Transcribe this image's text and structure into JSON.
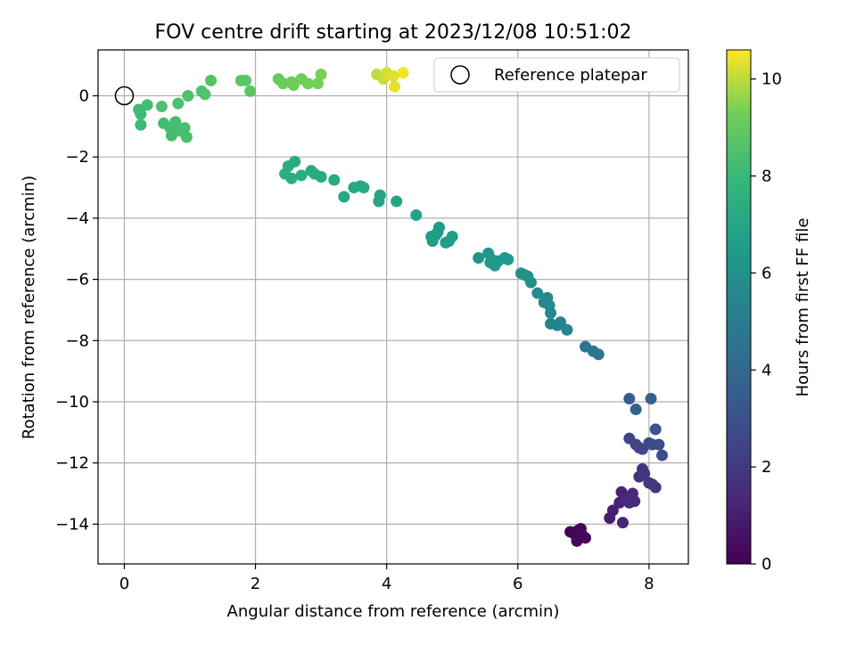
{
  "chart_data": {
    "type": "scatter",
    "title": "FOV centre drift starting at 2023/12/08 10:51:02",
    "xlabel": "Angular distance from reference (arcmin)",
    "ylabel": "Rotation from reference (arcmin)",
    "xlim": [
      -0.4,
      8.6
    ],
    "ylim": [
      -15.3,
      1.5
    ],
    "xticks": [
      0,
      2,
      4,
      6,
      8
    ],
    "yticks": [
      0,
      -2,
      -4,
      -6,
      -8,
      -10,
      -12,
      -14
    ],
    "xtick_labels": [
      "0",
      "2",
      "4",
      "6",
      "8"
    ],
    "ytick_labels": [
      "0",
      "−2",
      "−4",
      "−6",
      "−8",
      "−10",
      "−12",
      "−14"
    ],
    "grid": true,
    "legend": {
      "position": "top-right",
      "entries": [
        "Reference platepar"
      ]
    },
    "colorbar": {
      "label": "Hours from first FF file",
      "colormap": "viridis",
      "range": [
        0,
        10.6
      ],
      "ticks": [
        0,
        2,
        4,
        6,
        8,
        10
      ],
      "tick_labels": [
        "0",
        "2",
        "4",
        "6",
        "8",
        "10"
      ]
    },
    "reference_point": {
      "x": 0,
      "y": 0,
      "label": "Reference platepar"
    },
    "series": [
      {
        "columns": [
          "x",
          "y",
          "hours"
        ],
        "points": [
          [
            6.8,
            -14.25,
            0.05
          ],
          [
            6.85,
            -14.3,
            0.1
          ],
          [
            6.92,
            -14.2,
            0.12
          ],
          [
            6.96,
            -14.15,
            0.15
          ],
          [
            6.9,
            -14.55,
            0.2
          ],
          [
            7.03,
            -14.45,
            0.25
          ],
          [
            6.98,
            -14.35,
            0.3
          ],
          [
            7.4,
            -13.8,
            0.9
          ],
          [
            7.45,
            -13.55,
            1.0
          ],
          [
            7.55,
            -13.3,
            1.1
          ],
          [
            7.58,
            -12.95,
            1.2
          ],
          [
            7.6,
            -13.95,
            1.25
          ],
          [
            7.7,
            -13.3,
            1.3
          ],
          [
            7.75,
            -13.0,
            1.35
          ],
          [
            7.78,
            -13.25,
            1.4
          ],
          [
            7.65,
            -13.2,
            1.45
          ],
          [
            7.85,
            -12.45,
            1.7
          ],
          [
            7.9,
            -12.2,
            1.8
          ],
          [
            7.93,
            -12.35,
            1.85
          ],
          [
            8.0,
            -12.65,
            1.9
          ],
          [
            8.05,
            -12.7,
            1.95
          ],
          [
            8.1,
            -12.8,
            2.0
          ],
          [
            7.7,
            -11.2,
            2.4
          ],
          [
            7.8,
            -11.4,
            2.5
          ],
          [
            7.85,
            -11.5,
            2.55
          ],
          [
            7.9,
            -11.55,
            2.6
          ],
          [
            8.0,
            -11.35,
            2.7
          ],
          [
            8.05,
            -11.4,
            2.75
          ],
          [
            8.15,
            -11.4,
            2.8
          ],
          [
            8.2,
            -11.75,
            2.85
          ],
          [
            8.1,
            -10.9,
            3.1
          ],
          [
            7.7,
            -9.9,
            3.6
          ],
          [
            7.8,
            -10.25,
            3.65
          ],
          [
            8.03,
            -9.9,
            3.7
          ],
          [
            7.03,
            -8.2,
            4.6
          ],
          [
            7.15,
            -8.35,
            4.7
          ],
          [
            7.23,
            -8.45,
            4.8
          ],
          [
            6.5,
            -7.45,
            5.3
          ],
          [
            6.6,
            -7.5,
            5.35
          ],
          [
            6.65,
            -7.4,
            5.4
          ],
          [
            6.75,
            -7.65,
            5.45
          ],
          [
            6.45,
            -6.6,
            5.55
          ],
          [
            6.4,
            -6.75,
            5.6
          ],
          [
            6.48,
            -6.85,
            5.62
          ],
          [
            6.5,
            -7.1,
            5.65
          ],
          [
            6.3,
            -6.45,
            5.75
          ],
          [
            6.1,
            -5.85,
            5.85
          ],
          [
            6.15,
            -5.9,
            5.9
          ],
          [
            6.2,
            -6.1,
            5.95
          ],
          [
            6.05,
            -5.8,
            6.0
          ],
          [
            5.4,
            -5.3,
            6.15
          ],
          [
            5.55,
            -5.15,
            6.2
          ],
          [
            5.6,
            -5.35,
            6.25
          ],
          [
            5.65,
            -5.55,
            6.3
          ],
          [
            5.58,
            -5.45,
            6.32
          ],
          [
            5.7,
            -5.4,
            6.35
          ],
          [
            5.8,
            -5.3,
            6.4
          ],
          [
            5.85,
            -5.35,
            6.45
          ],
          [
            4.8,
            -4.3,
            6.55
          ],
          [
            4.78,
            -4.45,
            6.58
          ],
          [
            4.75,
            -4.55,
            6.6
          ],
          [
            4.68,
            -4.6,
            6.62
          ],
          [
            4.7,
            -4.75,
            6.65
          ],
          [
            4.9,
            -4.8,
            6.7
          ],
          [
            5.0,
            -4.6,
            6.72
          ],
          [
            4.95,
            -4.75,
            6.75
          ],
          [
            4.45,
            -3.9,
            6.85
          ],
          [
            4.15,
            -3.45,
            6.95
          ],
          [
            3.9,
            -3.25,
            7.0
          ],
          [
            3.88,
            -3.45,
            7.02
          ],
          [
            3.35,
            -3.3,
            7.1
          ],
          [
            3.5,
            -3.0,
            7.15
          ],
          [
            3.6,
            -2.95,
            7.17
          ],
          [
            3.65,
            -3.0,
            7.2
          ],
          [
            3.2,
            -2.75,
            7.25
          ],
          [
            3.0,
            -2.65,
            7.28
          ],
          [
            2.9,
            -2.55,
            7.3
          ],
          [
            2.85,
            -2.45,
            7.32
          ],
          [
            2.6,
            -2.15,
            7.35
          ],
          [
            2.5,
            -2.3,
            7.37
          ],
          [
            2.45,
            -2.55,
            7.4
          ],
          [
            2.55,
            -2.7,
            7.42
          ],
          [
            2.7,
            -2.6,
            7.45
          ],
          [
            0.25,
            -0.95,
            8.1
          ],
          [
            0.25,
            -0.6,
            8.15
          ],
          [
            0.22,
            -0.45,
            8.2
          ],
          [
            0.35,
            -0.3,
            8.22
          ],
          [
            0.6,
            -0.9,
            8.25
          ],
          [
            0.7,
            -1.05,
            8.3
          ],
          [
            0.72,
            -1.3,
            8.32
          ],
          [
            0.78,
            -0.85,
            8.35
          ],
          [
            0.85,
            -1.15,
            8.38
          ],
          [
            0.95,
            -1.35,
            8.4
          ],
          [
            0.92,
            -1.05,
            8.42
          ],
          [
            0.57,
            -0.35,
            8.45
          ],
          [
            0.82,
            -0.25,
            8.48
          ],
          [
            0.97,
            0.0,
            8.5
          ],
          [
            1.18,
            0.15,
            8.55
          ],
          [
            1.23,
            0.05,
            8.58
          ],
          [
            1.32,
            0.5,
            8.65
          ],
          [
            1.78,
            0.5,
            8.75
          ],
          [
            1.85,
            0.5,
            8.78
          ],
          [
            1.92,
            0.15,
            8.82
          ],
          [
            2.35,
            0.55,
            9.1
          ],
          [
            2.42,
            0.4,
            9.15
          ],
          [
            2.55,
            0.45,
            9.2
          ],
          [
            2.58,
            0.35,
            9.22
          ],
          [
            2.7,
            0.55,
            9.25
          ],
          [
            2.8,
            0.4,
            9.3
          ],
          [
            2.95,
            0.4,
            9.35
          ],
          [
            3.0,
            0.7,
            9.4
          ],
          [
            3.85,
            0.7,
            10.0
          ],
          [
            3.95,
            0.55,
            10.1
          ],
          [
            4.0,
            0.75,
            10.2
          ],
          [
            4.1,
            0.65,
            10.3
          ],
          [
            4.12,
            0.3,
            10.35
          ],
          [
            4.25,
            0.75,
            10.5
          ]
        ]
      }
    ]
  }
}
